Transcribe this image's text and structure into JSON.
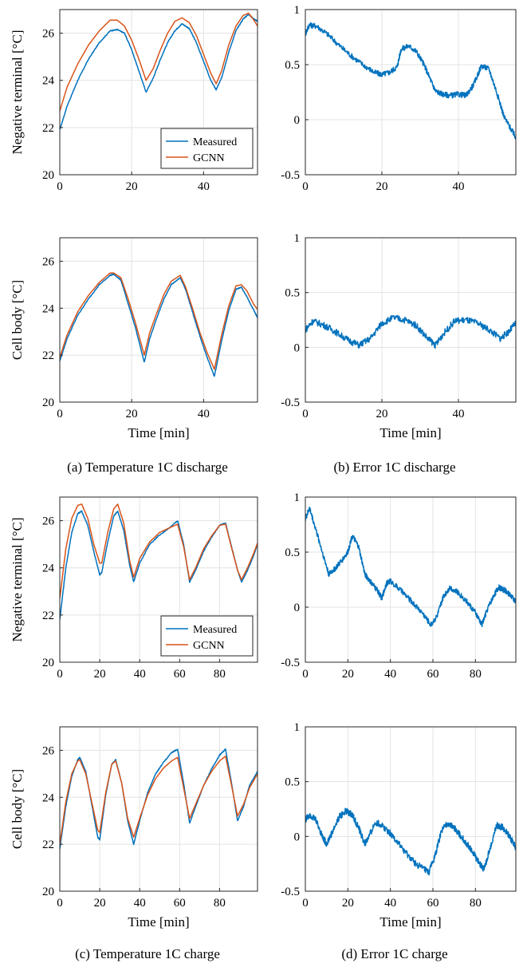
{
  "colors": {
    "measured": "#0072bd",
    "gcnn": "#d95319",
    "grid": "#e3e3e3",
    "axis": "#262626"
  },
  "chart_data": [
    {
      "id": "a1",
      "type": "line",
      "panel": "a",
      "ylabel": "Negative terminal [°C]",
      "xlabel": "",
      "xlim": [
        0,
        55
      ],
      "ylim": [
        20,
        27
      ],
      "xticks": [
        0,
        20,
        40
      ],
      "yticks": [
        20,
        22,
        24,
        26
      ],
      "grid": true,
      "legend": "bottom-right",
      "series": [
        {
          "name": "Measured",
          "color": "#0072bd",
          "noise": 0.02,
          "x": [
            0,
            2,
            5,
            8,
            11,
            14,
            16,
            18,
            20,
            22,
            24,
            26,
            28,
            30,
            32,
            34,
            36,
            38,
            40,
            42,
            43.5,
            45,
            47,
            49,
            51,
            52.5,
            54,
            55
          ],
          "y": [
            21.9,
            22.9,
            24.0,
            24.9,
            25.6,
            26.1,
            26.15,
            26.0,
            25.3,
            24.4,
            23.5,
            24.1,
            24.9,
            25.6,
            26.1,
            26.4,
            26.2,
            25.6,
            24.8,
            24.0,
            23.6,
            24.1,
            25.2,
            26.1,
            26.6,
            26.8,
            26.6,
            26.5
          ]
        },
        {
          "name": "GCNN",
          "color": "#d95319",
          "noise": 0.0,
          "x": [
            0,
            2,
            5,
            8,
            11,
            14,
            16,
            18,
            20,
            22,
            24,
            26,
            28,
            30,
            32,
            34,
            36,
            38,
            40,
            42,
            43.5,
            45,
            47,
            49,
            51,
            52.5,
            54,
            55
          ],
          "y": [
            22.7,
            23.7,
            24.7,
            25.5,
            26.1,
            26.55,
            26.55,
            26.3,
            25.7,
            24.9,
            24.0,
            24.5,
            25.3,
            26.0,
            26.5,
            26.65,
            26.45,
            25.9,
            25.1,
            24.3,
            23.85,
            24.4,
            25.5,
            26.3,
            26.75,
            26.85,
            26.55,
            26.3
          ]
        }
      ]
    },
    {
      "id": "b1",
      "type": "line",
      "panel": "b",
      "ylabel": "",
      "xlabel": "",
      "xlim": [
        0,
        55
      ],
      "ylim": [
        -0.5,
        1
      ],
      "xticks": [
        0,
        20,
        40
      ],
      "yticks": [
        -0.5,
        0,
        0.5,
        1
      ],
      "yticklabels": [
        "-0.5",
        "0",
        "0.5",
        "1"
      ],
      "grid": true,
      "series": [
        {
          "color": "#0072bd",
          "noise": 0.025,
          "x": [
            0,
            1,
            3,
            6,
            9,
            12,
            15,
            18,
            20,
            22,
            24,
            25,
            27,
            29,
            31,
            33,
            34,
            36,
            38,
            40,
            42,
            44,
            46,
            48,
            50,
            52,
            54,
            55
          ],
          "y": [
            0.78,
            0.86,
            0.85,
            0.77,
            0.67,
            0.58,
            0.5,
            0.43,
            0.41,
            0.43,
            0.48,
            0.64,
            0.67,
            0.62,
            0.5,
            0.34,
            0.26,
            0.23,
            0.22,
            0.23,
            0.22,
            0.32,
            0.49,
            0.46,
            0.25,
            0.02,
            -0.1,
            -0.16
          ]
        }
      ]
    },
    {
      "id": "a2",
      "type": "line",
      "panel": "a",
      "ylabel": "Cell body [°C]",
      "xlabel": "Time [min]",
      "xlim": [
        0,
        55
      ],
      "ylim": [
        20,
        27
      ],
      "xticks": [
        0,
        20,
        40
      ],
      "yticks": [
        20,
        22,
        24,
        26
      ],
      "grid": true,
      "series": [
        {
          "name": "Measured",
          "color": "#0072bd",
          "noise": 0.02,
          "x": [
            0,
            2,
            5,
            8,
            11,
            14,
            15,
            17,
            19,
            21,
            23.5,
            25,
            27,
            29,
            31,
            33.5,
            35,
            37,
            39,
            41,
            43,
            45,
            47,
            49,
            50.5,
            52,
            54,
            55
          ],
          "y": [
            21.75,
            22.7,
            23.7,
            24.4,
            25.0,
            25.4,
            25.45,
            25.2,
            24.2,
            23.2,
            21.7,
            22.7,
            23.6,
            24.4,
            25.0,
            25.3,
            24.8,
            23.8,
            22.8,
            21.9,
            21.1,
            22.6,
            23.9,
            24.8,
            24.9,
            24.5,
            23.9,
            23.6
          ]
        },
        {
          "name": "GCNN",
          "color": "#d95319",
          "noise": 0.0,
          "x": [
            0,
            2,
            5,
            8,
            11,
            14,
            15,
            17,
            19,
            21,
            23.5,
            25,
            27,
            29,
            31,
            33.5,
            35,
            37,
            39,
            41,
            43,
            45,
            47,
            49,
            50.5,
            52,
            54,
            55
          ],
          "y": [
            21.9,
            22.85,
            23.85,
            24.55,
            25.1,
            25.5,
            25.5,
            25.3,
            24.4,
            23.4,
            22.0,
            22.95,
            23.8,
            24.6,
            25.15,
            25.4,
            24.9,
            23.95,
            22.95,
            22.1,
            21.4,
            22.85,
            24.1,
            24.95,
            25.0,
            24.75,
            24.15,
            23.95
          ]
        }
      ]
    },
    {
      "id": "b2",
      "type": "line",
      "panel": "b",
      "ylabel": "",
      "xlabel": "Time [min]",
      "xlim": [
        0,
        55
      ],
      "ylim": [
        -0.5,
        1
      ],
      "xticks": [
        0,
        20,
        40
      ],
      "yticks": [
        -0.5,
        0,
        0.5,
        1
      ],
      "yticklabels": [
        "-0.5",
        "0",
        "0.5",
        "1"
      ],
      "grid": true,
      "series": [
        {
          "color": "#0072bd",
          "noise": 0.03,
          "x": [
            0,
            2,
            5,
            8,
            11,
            14,
            17,
            20,
            23,
            26,
            29,
            32,
            34,
            36,
            39,
            42,
            45,
            48,
            51,
            53,
            55
          ],
          "y": [
            0.16,
            0.24,
            0.2,
            0.14,
            0.07,
            0.02,
            0.08,
            0.22,
            0.27,
            0.25,
            0.2,
            0.08,
            0.02,
            0.12,
            0.24,
            0.25,
            0.22,
            0.16,
            0.08,
            0.14,
            0.22
          ]
        }
      ]
    },
    {
      "id": "c1",
      "type": "line",
      "panel": "c",
      "ylabel": "Negative terminal [°C]",
      "xlabel": "",
      "xlim": [
        0,
        99
      ],
      "ylim": [
        20,
        27
      ],
      "xticks": [
        0,
        20,
        40,
        60,
        80
      ],
      "yticks": [
        20,
        22,
        24,
        26
      ],
      "grid": true,
      "legend": "bottom-right",
      "series": [
        {
          "name": "Measured",
          "color": "#0072bd",
          "noise": 0.02,
          "x": [
            0,
            3,
            6,
            9,
            11,
            14,
            17,
            20,
            21,
            24,
            27,
            29,
            32,
            35,
            37,
            40,
            45,
            50,
            55,
            59,
            62,
            65,
            68,
            72,
            76,
            80,
            83,
            86,
            89,
            91,
            94,
            97,
            99
          ],
          "y": [
            21.8,
            24.0,
            25.5,
            26.3,
            26.4,
            25.8,
            24.7,
            23.7,
            23.8,
            25.1,
            26.2,
            26.4,
            25.6,
            24.1,
            23.4,
            24.2,
            25.0,
            25.4,
            25.7,
            26.0,
            25.0,
            23.4,
            23.9,
            24.7,
            25.3,
            25.8,
            25.9,
            24.9,
            23.9,
            23.4,
            23.9,
            24.5,
            25.0
          ]
        },
        {
          "name": "GCNN",
          "color": "#d95319",
          "noise": 0.0,
          "x": [
            0,
            3,
            6,
            9,
            11,
            14,
            17,
            20,
            21,
            24,
            27,
            29,
            32,
            35,
            37,
            40,
            45,
            50,
            55,
            59,
            62,
            65,
            68,
            72,
            76,
            80,
            83,
            86,
            89,
            91,
            94,
            97,
            99
          ],
          "y": [
            22.7,
            24.8,
            26.1,
            26.65,
            26.7,
            26.1,
            25.0,
            24.2,
            24.2,
            25.5,
            26.5,
            26.7,
            25.9,
            24.3,
            23.6,
            24.4,
            25.1,
            25.5,
            25.7,
            25.85,
            24.9,
            23.5,
            24.0,
            24.8,
            25.35,
            25.8,
            25.85,
            24.85,
            23.9,
            23.5,
            24.0,
            24.6,
            25.05
          ]
        }
      ]
    },
    {
      "id": "d1",
      "type": "line",
      "panel": "d",
      "ylabel": "",
      "xlabel": "",
      "xlim": [
        0,
        99
      ],
      "ylim": [
        -0.5,
        1
      ],
      "xticks": [
        0,
        20,
        40,
        60,
        80
      ],
      "yticks": [
        -0.5,
        0,
        0.5,
        1
      ],
      "yticklabels": [
        "-0.5",
        "0",
        "0.5",
        "1"
      ],
      "grid": true,
      "series": [
        {
          "color": "#0072bd",
          "noise": 0.025,
          "x": [
            0,
            2,
            5,
            8,
            11,
            14,
            17,
            20,
            22,
            25,
            28,
            31,
            34,
            36,
            38,
            40,
            45,
            50,
            55,
            59,
            62,
            65,
            68,
            72,
            76,
            80,
            83,
            86,
            89,
            91,
            94,
            97,
            99
          ],
          "y": [
            0.8,
            0.9,
            0.7,
            0.5,
            0.3,
            0.35,
            0.42,
            0.5,
            0.65,
            0.55,
            0.3,
            0.22,
            0.15,
            0.08,
            0.21,
            0.24,
            0.15,
            0.05,
            -0.05,
            -0.16,
            -0.08,
            0.1,
            0.18,
            0.13,
            0.05,
            -0.05,
            -0.16,
            0.0,
            0.12,
            0.18,
            0.15,
            0.1,
            0.05
          ]
        }
      ]
    },
    {
      "id": "c2",
      "type": "line",
      "panel": "c",
      "ylabel": "Cell body [°C]",
      "xlabel": "Time [min]",
      "xlim": [
        0,
        99
      ],
      "ylim": [
        20,
        27
      ],
      "xticks": [
        0,
        20,
        40,
        60,
        80
      ],
      "yticks": [
        20,
        22,
        24,
        26
      ],
      "grid": true,
      "series": [
        {
          "name": "Measured",
          "color": "#0072bd",
          "noise": 0.02,
          "x": [
            0,
            3,
            6,
            9,
            10,
            13,
            16,
            19,
            20,
            23,
            26,
            28,
            31,
            34,
            37,
            40,
            44,
            48,
            52,
            56,
            59,
            62,
            65,
            68,
            72,
            76,
            80,
            83,
            86,
            89,
            92,
            95,
            99
          ],
          "y": [
            21.8,
            23.6,
            24.9,
            25.6,
            25.7,
            25.1,
            23.7,
            22.3,
            22.2,
            24.1,
            25.4,
            25.6,
            24.6,
            23.0,
            22.0,
            23.0,
            24.2,
            25.0,
            25.5,
            25.9,
            26.05,
            24.6,
            22.9,
            23.6,
            24.5,
            25.2,
            25.8,
            26.05,
            24.6,
            23.0,
            23.6,
            24.5,
            25.1
          ]
        },
        {
          "name": "GCNN",
          "color": "#d95319",
          "noise": 0.0,
          "x": [
            0,
            3,
            6,
            9,
            10,
            13,
            16,
            19,
            20,
            23,
            26,
            28,
            31,
            34,
            37,
            40,
            44,
            48,
            52,
            56,
            59,
            62,
            65,
            68,
            72,
            76,
            80,
            83,
            86,
            89,
            92,
            95,
            99
          ],
          "y": [
            22.0,
            23.8,
            25.0,
            25.55,
            25.6,
            25.0,
            23.8,
            22.6,
            22.5,
            24.2,
            25.4,
            25.55,
            24.6,
            23.1,
            22.3,
            23.1,
            24.1,
            24.8,
            25.25,
            25.55,
            25.7,
            24.4,
            23.1,
            23.7,
            24.5,
            25.1,
            25.55,
            25.75,
            24.5,
            23.2,
            23.7,
            24.4,
            25.0
          ]
        }
      ]
    },
    {
      "id": "d2",
      "type": "line",
      "panel": "d",
      "ylabel": "",
      "xlabel": "Time [min]",
      "xlim": [
        0,
        99
      ],
      "ylim": [
        -0.5,
        1
      ],
      "xticks": [
        0,
        20,
        40,
        60,
        80
      ],
      "yticks": [
        -0.5,
        0,
        0.5,
        1
      ],
      "yticklabels": [
        "-0.5",
        "0",
        "0.5",
        "1"
      ],
      "grid": true,
      "series": [
        {
          "color": "#0072bd",
          "noise": 0.03,
          "x": [
            0,
            2,
            5,
            8,
            10,
            13,
            16,
            19,
            22,
            25,
            28,
            30,
            33,
            36,
            40,
            44,
            48,
            52,
            56,
            58,
            61,
            64,
            67,
            70,
            74,
            78,
            82,
            84,
            87,
            90,
            93,
            96,
            99
          ],
          "y": [
            0.15,
            0.2,
            0.15,
            0.0,
            -0.07,
            0.05,
            0.18,
            0.23,
            0.2,
            0.08,
            -0.07,
            0.0,
            0.13,
            0.1,
            0.03,
            -0.07,
            -0.17,
            -0.25,
            -0.3,
            -0.33,
            -0.18,
            0.05,
            0.12,
            0.08,
            -0.02,
            -0.12,
            -0.25,
            -0.3,
            -0.1,
            0.1,
            0.08,
            0.0,
            -0.1
          ]
        }
      ]
    }
  ],
  "captions": {
    "a": "(a) Temperature 1C discharge",
    "b": "(b) Error 1C discharge",
    "c": "(c) Temperature 1C charge",
    "d": "(d) Error 1C charge"
  }
}
